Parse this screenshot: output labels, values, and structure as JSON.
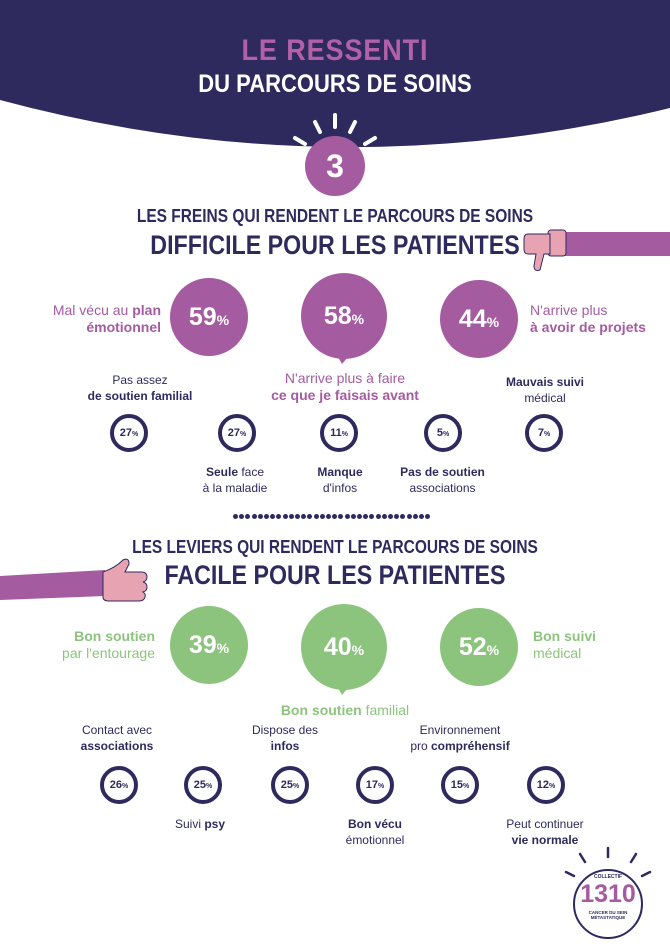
{
  "header": {
    "title_line1": "LE RESSENTI",
    "title_line2": "DU PARCOURS DE SOINS",
    "step_number": "3"
  },
  "colors": {
    "navy": "#2e2a5e",
    "purple": "#a55ba0",
    "green": "#8cc47e",
    "pink_hand": "#e8a3b3"
  },
  "freins": {
    "heading_small": "LES FREINS QUI RENDENT LE PARCOURS DE SOINS",
    "heading_big": "DIFFICILE POUR LES PATIENTES",
    "icon": "thumbs-down-icon",
    "main": [
      {
        "value": "59",
        "unit": "%",
        "label_plain": "Mal vécu au ",
        "label_bold": "plan",
        "label_bold2": "émotionnel"
      },
      {
        "value": "58",
        "unit": "%",
        "label_plain": "N'arrive plus à faire",
        "label_bold": "ce que je faisais avant"
      },
      {
        "value": "44",
        "unit": "%",
        "label_plain": "N'arrive plus",
        "label_bold": "à avoir de projets"
      }
    ],
    "minor": [
      {
        "value": "27",
        "unit": "%",
        "line1": "Pas assez",
        "line2": "de soutien familial"
      },
      {
        "value": "27",
        "unit": "%",
        "line1": "Seule",
        "line1_rest": " face",
        "line2": "à la maladie"
      },
      {
        "value": "11",
        "unit": "%",
        "line1": "Manque",
        "line2": "d'infos"
      },
      {
        "value": "5",
        "unit": "%",
        "line1": "Pas de soutien",
        "line2": "associations"
      },
      {
        "value": "7",
        "unit": "%",
        "line1": "Mauvais suivi",
        "line2": "médical"
      }
    ]
  },
  "leviers": {
    "heading_small": "LES LEVIERS QUI RENDENT LE PARCOURS DE SOINS",
    "heading_big": "FACILE POUR LES PATIENTES",
    "icon": "helping-hand-icon",
    "main": [
      {
        "value": "39",
        "unit": "%",
        "label_bold": "Bon soutien",
        "label_plain": "par l'entourage"
      },
      {
        "value": "40",
        "unit": "%",
        "label_bold": "Bon soutien",
        "label_plain": " familial"
      },
      {
        "value": "52",
        "unit": "%",
        "label_bold": "Bon suivi",
        "label_plain": "médical"
      }
    ],
    "minor": [
      {
        "value": "26",
        "unit": "%",
        "line1": "Contact avec",
        "line2": "associations"
      },
      {
        "value": "25",
        "unit": "%",
        "line1": "Suivi ",
        "line2": "psy"
      },
      {
        "value": "25",
        "unit": "%",
        "line1": "Dispose des",
        "line2": "infos"
      },
      {
        "value": "17",
        "unit": "%",
        "line1": "Bon vécu",
        "line2": "émotionnel"
      },
      {
        "value": "15",
        "unit": "%",
        "line1": "Environnement",
        "line2_plain": "pro ",
        "line2": "compréhensif"
      },
      {
        "value": "12",
        "unit": "%",
        "line1": "Peut continuer",
        "line2": "vie normale"
      }
    ]
  },
  "logo": {
    "top": "COLLECTIF",
    "number": "1310",
    "bottom1": "CANCER DU SEIN",
    "bottom2": "MÉTASTATIQUE"
  }
}
